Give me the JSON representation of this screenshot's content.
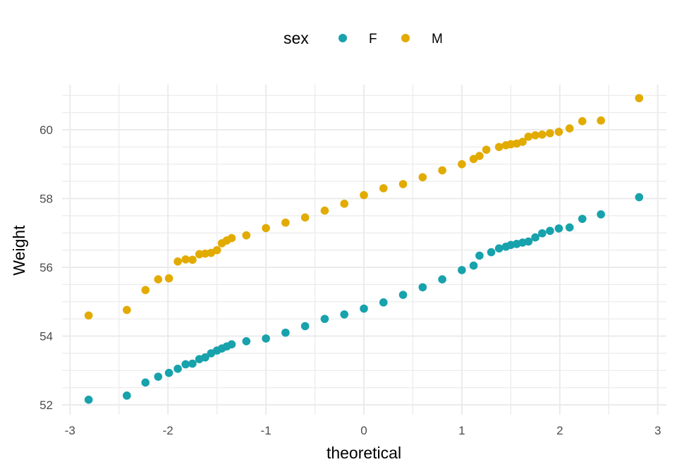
{
  "chart_data": {
    "type": "scatter",
    "title": "",
    "xlabel": "theoretical",
    "ylabel": "Weight",
    "xlim": [
      -3,
      3
    ],
    "ylim": [
      52,
      61
    ],
    "x_ticks": [
      "-3",
      "-2",
      "-1",
      "0",
      "1",
      "2",
      "3"
    ],
    "y_ticks": [
      "52",
      "54",
      "56",
      "58",
      "60"
    ],
    "grid": true,
    "legend": {
      "title": "sex",
      "position": "top"
    },
    "series": [
      {
        "name": "F",
        "color": "#17a2ac",
        "points": [
          [
            -2.81,
            52.15
          ],
          [
            -2.42,
            52.27
          ],
          [
            -2.23,
            52.65
          ],
          [
            -2.1,
            52.82
          ],
          [
            -1.99,
            52.93
          ],
          [
            -1.9,
            53.05
          ],
          [
            -1.82,
            53.18
          ],
          [
            -1.75,
            53.2
          ],
          [
            -1.68,
            53.33
          ],
          [
            -1.62,
            53.38
          ],
          [
            -1.56,
            53.5
          ],
          [
            -1.5,
            53.58
          ],
          [
            -1.45,
            53.64
          ],
          [
            -1.4,
            53.7
          ],
          [
            -1.35,
            53.76
          ],
          [
            -1.2,
            53.85
          ],
          [
            -1.0,
            53.93
          ],
          [
            -0.8,
            54.1
          ],
          [
            -0.6,
            54.29
          ],
          [
            -0.4,
            54.5
          ],
          [
            -0.2,
            54.63
          ],
          [
            0.0,
            54.8
          ],
          [
            0.2,
            54.98
          ],
          [
            0.4,
            55.2
          ],
          [
            0.6,
            55.42
          ],
          [
            0.8,
            55.65
          ],
          [
            1.0,
            55.92
          ],
          [
            1.12,
            56.05
          ],
          [
            1.18,
            56.34
          ],
          [
            1.3,
            56.44
          ],
          [
            1.38,
            56.55
          ],
          [
            1.45,
            56.6
          ],
          [
            1.5,
            56.65
          ],
          [
            1.56,
            56.68
          ],
          [
            1.62,
            56.72
          ],
          [
            1.68,
            56.75
          ],
          [
            1.75,
            56.87
          ],
          [
            1.82,
            56.99
          ],
          [
            1.9,
            57.06
          ],
          [
            1.99,
            57.13
          ],
          [
            2.1,
            57.16
          ],
          [
            2.23,
            57.41
          ],
          [
            2.42,
            57.54
          ],
          [
            2.81,
            58.04
          ]
        ]
      },
      {
        "name": "M",
        "color": "#e2ab00",
        "points": [
          [
            -2.81,
            54.6
          ],
          [
            -2.42,
            54.76
          ],
          [
            -2.23,
            55.34
          ],
          [
            -2.1,
            55.65
          ],
          [
            -1.99,
            55.68
          ],
          [
            -1.9,
            56.17
          ],
          [
            -1.82,
            56.23
          ],
          [
            -1.75,
            56.22
          ],
          [
            -1.68,
            56.38
          ],
          [
            -1.62,
            56.4
          ],
          [
            -1.56,
            56.42
          ],
          [
            -1.5,
            56.5
          ],
          [
            -1.45,
            56.7
          ],
          [
            -1.4,
            56.78
          ],
          [
            -1.35,
            56.85
          ],
          [
            -1.2,
            56.93
          ],
          [
            -1.0,
            57.14
          ],
          [
            -0.8,
            57.3
          ],
          [
            -0.6,
            57.45
          ],
          [
            -0.4,
            57.65
          ],
          [
            -0.2,
            57.85
          ],
          [
            0.0,
            58.1
          ],
          [
            0.2,
            58.3
          ],
          [
            0.4,
            58.42
          ],
          [
            0.6,
            58.62
          ],
          [
            0.8,
            58.82
          ],
          [
            1.0,
            59.0
          ],
          [
            1.12,
            59.15
          ],
          [
            1.18,
            59.24
          ],
          [
            1.25,
            59.42
          ],
          [
            1.38,
            59.5
          ],
          [
            1.45,
            59.55
          ],
          [
            1.5,
            59.58
          ],
          [
            1.56,
            59.6
          ],
          [
            1.62,
            59.65
          ],
          [
            1.68,
            59.8
          ],
          [
            1.75,
            59.84
          ],
          [
            1.82,
            59.86
          ],
          [
            1.9,
            59.9
          ],
          [
            1.99,
            59.94
          ],
          [
            2.1,
            60.04
          ],
          [
            2.23,
            60.25
          ],
          [
            2.42,
            60.27
          ],
          [
            2.81,
            60.92
          ]
        ]
      }
    ]
  }
}
